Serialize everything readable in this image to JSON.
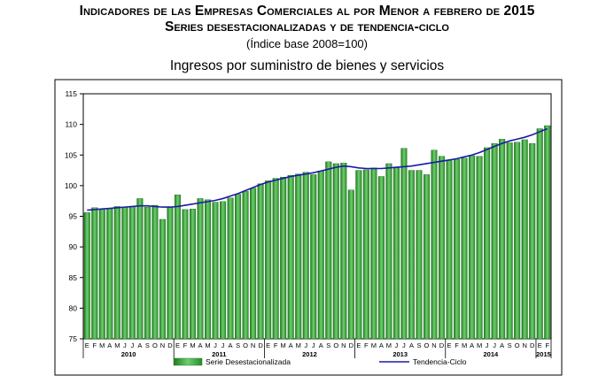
{
  "header": {
    "title_line1": "Indicadores de las Empresas Comerciales al por Menor a febrero de 2015",
    "title_line2": "Series desestacionalizadas y de tendencia-ciclo",
    "base_note": "(Índice base 2008=100)"
  },
  "chart_data": {
    "type": "bar",
    "title": "Ingresos por suministro de bienes y servicios",
    "xlabel": "",
    "ylabel": "",
    "ylim": [
      75,
      115
    ],
    "yticks": [
      75,
      80,
      85,
      90,
      95,
      100,
      105,
      110,
      115
    ],
    "grid": false,
    "legend": "bottom",
    "month_labels": [
      "E",
      "F",
      "M",
      "A",
      "M",
      "J",
      "J",
      "A",
      "S",
      "O",
      "N",
      "D",
      "E",
      "F",
      "M",
      "A",
      "M",
      "J",
      "J",
      "A",
      "S",
      "O",
      "N",
      "D",
      "E",
      "F",
      "M",
      "A",
      "M",
      "J",
      "J",
      "A",
      "S",
      "O",
      "N",
      "D",
      "E",
      "F",
      "M",
      "A",
      "M",
      "J",
      "J",
      "A",
      "S",
      "O",
      "N",
      "D",
      "E",
      "F",
      "M",
      "A",
      "M",
      "J",
      "J",
      "A",
      "S",
      "O",
      "N",
      "D",
      "E",
      "F"
    ],
    "year_labels": [
      {
        "label": "2010",
        "start": 0,
        "span": 12
      },
      {
        "label": "2011",
        "start": 12,
        "span": 12
      },
      {
        "label": "2012",
        "start": 24,
        "span": 12
      },
      {
        "label": "2013",
        "start": 36,
        "span": 12
      },
      {
        "label": "2014",
        "start": 48,
        "span": 12
      },
      {
        "label": "2015",
        "start": 60,
        "span": 2
      }
    ],
    "series": [
      {
        "name": "Serie Desestacionalizada",
        "kind": "bar",
        "color": "#3a9a3a",
        "values": [
          95.6,
          96.4,
          96.1,
          96.2,
          96.6,
          96.5,
          96.6,
          97.9,
          96.5,
          96.8,
          94.5,
          96.4,
          98.5,
          96.1,
          96.2,
          97.9,
          97.7,
          97.3,
          97.4,
          98.0,
          98.6,
          99.1,
          99.6,
          100.3,
          100.8,
          101.2,
          101.4,
          101.7,
          101.9,
          102.2,
          101.8,
          102.4,
          103.9,
          103.6,
          103.7,
          99.3,
          102.5,
          102.6,
          102.9,
          101.5,
          103.6,
          102.9,
          106.1,
          102.5,
          102.5,
          101.8,
          105.8,
          104.8,
          104.1,
          104.3,
          104.5,
          104.9,
          104.8,
          106.2,
          106.9,
          107.6,
          107.0,
          107.1,
          107.5,
          106.9,
          109.3,
          109.8
        ]
      },
      {
        "name": "Tendencia-Ciclo",
        "kind": "line",
        "color": "#1a1aa6",
        "values": [
          96.0,
          96.1,
          96.2,
          96.3,
          96.4,
          96.5,
          96.6,
          96.7,
          96.7,
          96.6,
          96.5,
          96.5,
          96.6,
          96.8,
          97.0,
          97.2,
          97.4,
          97.6,
          97.9,
          98.3,
          98.7,
          99.2,
          99.7,
          100.2,
          100.6,
          100.9,
          101.2,
          101.5,
          101.7,
          101.9,
          102.1,
          102.4,
          102.7,
          103.0,
          103.2,
          103.1,
          102.9,
          102.8,
          102.8,
          102.8,
          102.9,
          103.0,
          103.1,
          103.2,
          103.4,
          103.6,
          103.8,
          104.0,
          104.2,
          104.4,
          104.7,
          105.0,
          105.4,
          105.9,
          106.4,
          106.9,
          107.3,
          107.6,
          107.9,
          108.3,
          108.8,
          109.3
        ]
      }
    ]
  }
}
